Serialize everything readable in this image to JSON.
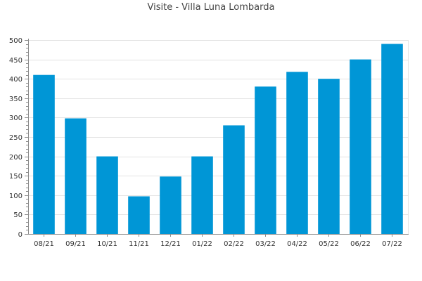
{
  "chart_data": {
    "type": "bar",
    "title": "Visite - Villa Luna Lombarda",
    "categories": [
      "08/21",
      "09/21",
      "10/21",
      "11/21",
      "12/21",
      "01/22",
      "02/22",
      "03/22",
      "04/22",
      "05/22",
      "06/22",
      "07/22"
    ],
    "values": [
      410,
      298,
      200,
      97,
      148,
      200,
      280,
      380,
      418,
      400,
      450,
      490
    ],
    "ylim": [
      0,
      500
    ],
    "yticks": [
      0,
      50,
      100,
      150,
      200,
      250,
      300,
      350,
      400,
      450,
      500
    ],
    "grid": true,
    "bar_color": "#0096d6",
    "grid_color": "#e3e3e3",
    "axis_color": "#8c8c8c"
  }
}
